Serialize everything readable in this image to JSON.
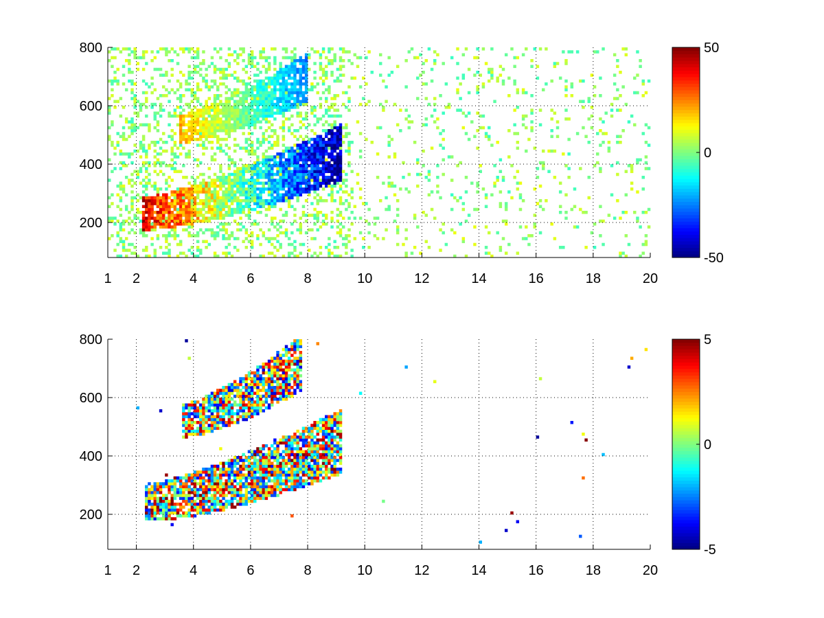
{
  "colors": {
    "background": "#ffffff",
    "axes": "#000000",
    "grid": "#000000",
    "colormap": "jet"
  },
  "chart_data": [
    {
      "type": "heatmap",
      "title": "",
      "xlabel": "",
      "ylabel": "",
      "xlim": [
        1,
        20
      ],
      "ylim": [
        80,
        800
      ],
      "x_ticks": [
        1,
        2,
        4,
        6,
        8,
        10,
        12,
        14,
        16,
        18,
        20
      ],
      "y_ticks": [
        200,
        400,
        600,
        800
      ],
      "grid": true,
      "colorbar": {
        "min": -50,
        "max": 50,
        "ticks": [
          -50,
          0,
          50
        ]
      },
      "background_noise": true,
      "features": [
        {
          "name": "lower-ridge",
          "x_range": [
            2.2,
            9.2
          ],
          "y_start": 230,
          "y_end": 440,
          "width": 70,
          "value": 40
        },
        {
          "name": "upper-ridge",
          "x_range": [
            3.5,
            8.0
          ],
          "y_start": 520,
          "y_end": 700,
          "width": 60,
          "value": 20
        }
      ]
    },
    {
      "type": "heatmap",
      "title": "",
      "xlabel": "",
      "ylabel": "",
      "xlim": [
        1,
        20
      ],
      "ylim": [
        80,
        800
      ],
      "x_ticks": [
        1,
        2,
        4,
        6,
        8,
        10,
        12,
        14,
        16,
        18,
        20
      ],
      "y_ticks": [
        200,
        400,
        600,
        800
      ],
      "grid": true,
      "colorbar": {
        "min": -5,
        "max": 5,
        "ticks": [
          -5,
          0,
          5
        ]
      },
      "background_noise": false,
      "features": [
        {
          "name": "lower-ridge",
          "x_range": [
            2.3,
            9.2
          ],
          "y_start": 240,
          "y_end": 450,
          "width": 80,
          "value": 2
        },
        {
          "name": "upper-ridge",
          "x_range": [
            3.6,
            7.8
          ],
          "y_start": 520,
          "y_end": 720,
          "width": 70,
          "value": 1
        }
      ]
    }
  ]
}
